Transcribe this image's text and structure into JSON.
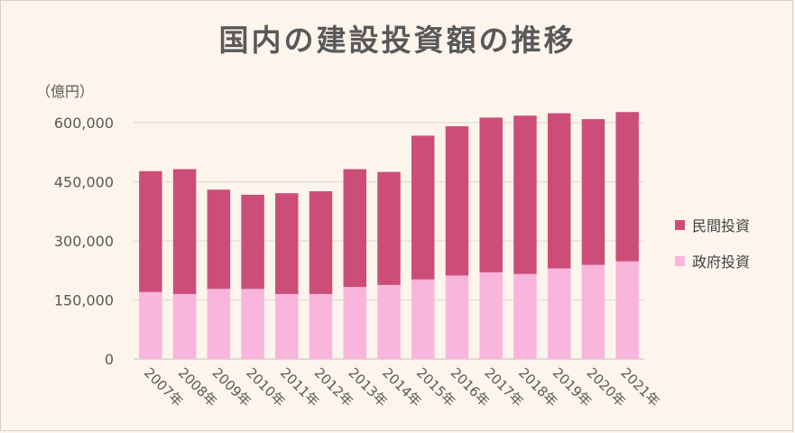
{
  "chart_data": {
    "type": "bar",
    "stacked": true,
    "title": "国内の建設投資額の推移",
    "unit_label": "（億円）",
    "categories": [
      "2007年",
      "2008年",
      "2009年",
      "2010年",
      "2011年",
      "2012年",
      "2013年",
      "2014年",
      "2015年",
      "2016年",
      "2017年",
      "2018年",
      "2019年",
      "2020年",
      "2021年"
    ],
    "series": [
      {
        "name": "政府投資",
        "color": "#f9b5dc",
        "values": [
          170000,
          165000,
          178000,
          178000,
          165000,
          165000,
          183000,
          188000,
          202000,
          212000,
          220000,
          216000,
          230000,
          239000,
          248000
        ]
      },
      {
        "name": "民間投資",
        "color": "#cc4e78",
        "values": [
          307000,
          317000,
          252000,
          239000,
          256000,
          261000,
          299000,
          287000,
          365000,
          379000,
          393000,
          402000,
          394000,
          370000,
          379000
        ]
      }
    ],
    "ylim": [
      0,
      600000
    ],
    "yticks": [
      "0",
      "150,000",
      "300,000",
      "450,000",
      "600,000"
    ],
    "ytick_values": [
      0,
      150000,
      300000,
      450000,
      600000
    ],
    "legend_position": "right",
    "grid": true
  }
}
